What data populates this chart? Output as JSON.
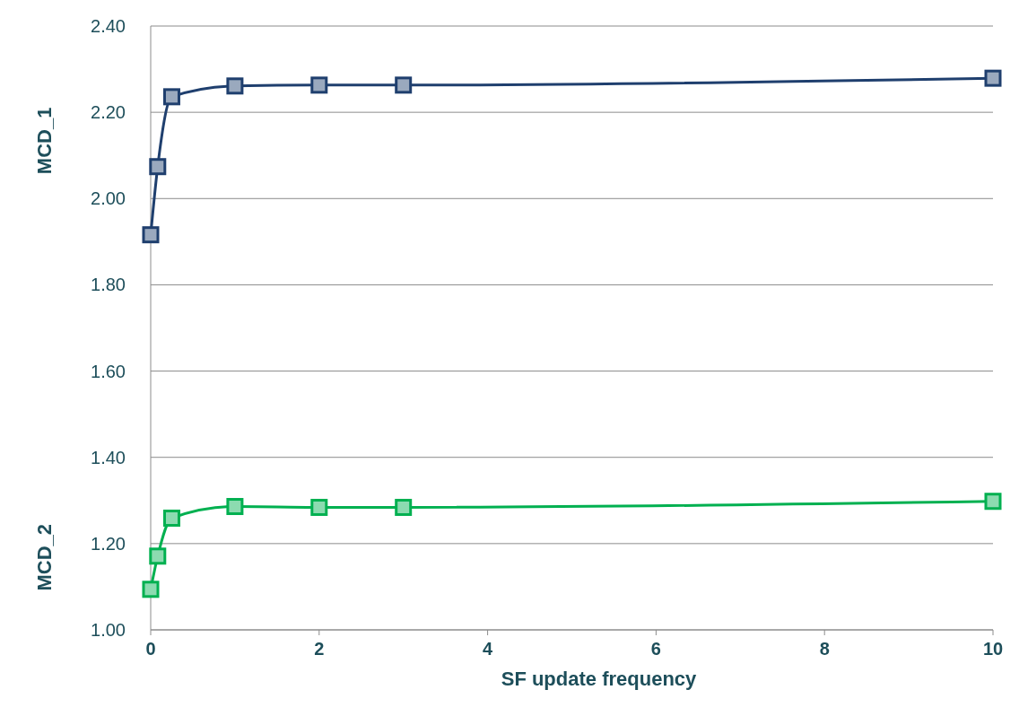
{
  "chart_data": {
    "type": "line",
    "xlabel": "SF update frequency",
    "ylabel": "MCD_1",
    "annotations": [
      "MCD_2"
    ],
    "x": [
      0,
      0.083,
      0.25,
      1,
      2,
      3,
      10
    ],
    "series": [
      {
        "color": "#1f3f6e",
        "values": [
          1.916,
          2.074,
          2.236,
          2.261,
          2.263,
          2.263,
          2.279
        ]
      },
      {
        "color": "#00b050",
        "values": [
          1.094,
          1.171,
          1.259,
          1.286,
          1.284,
          1.284,
          1.298
        ]
      }
    ],
    "xlim": [
      0,
      10
    ],
    "xticks": [
      0,
      2,
      4,
      6,
      8,
      10
    ],
    "ylim": [
      1,
      2.4
    ],
    "yticks": [
      {
        "value": 1,
        "label": "1.00"
      },
      {
        "value": 1.2,
        "label": "1.20"
      },
      {
        "value": 1.4,
        "label": "1.40"
      },
      {
        "value": 1.6,
        "label": "1.60"
      },
      {
        "value": 1.8,
        "label": "1.80"
      },
      {
        "value": 2,
        "label": "2.00"
      },
      {
        "value": 2.2,
        "label": "2.20"
      },
      {
        "value": 2.4,
        "label": "2.40"
      }
    ],
    "grid": "y",
    "marker": "square",
    "line_style": "solid"
  }
}
